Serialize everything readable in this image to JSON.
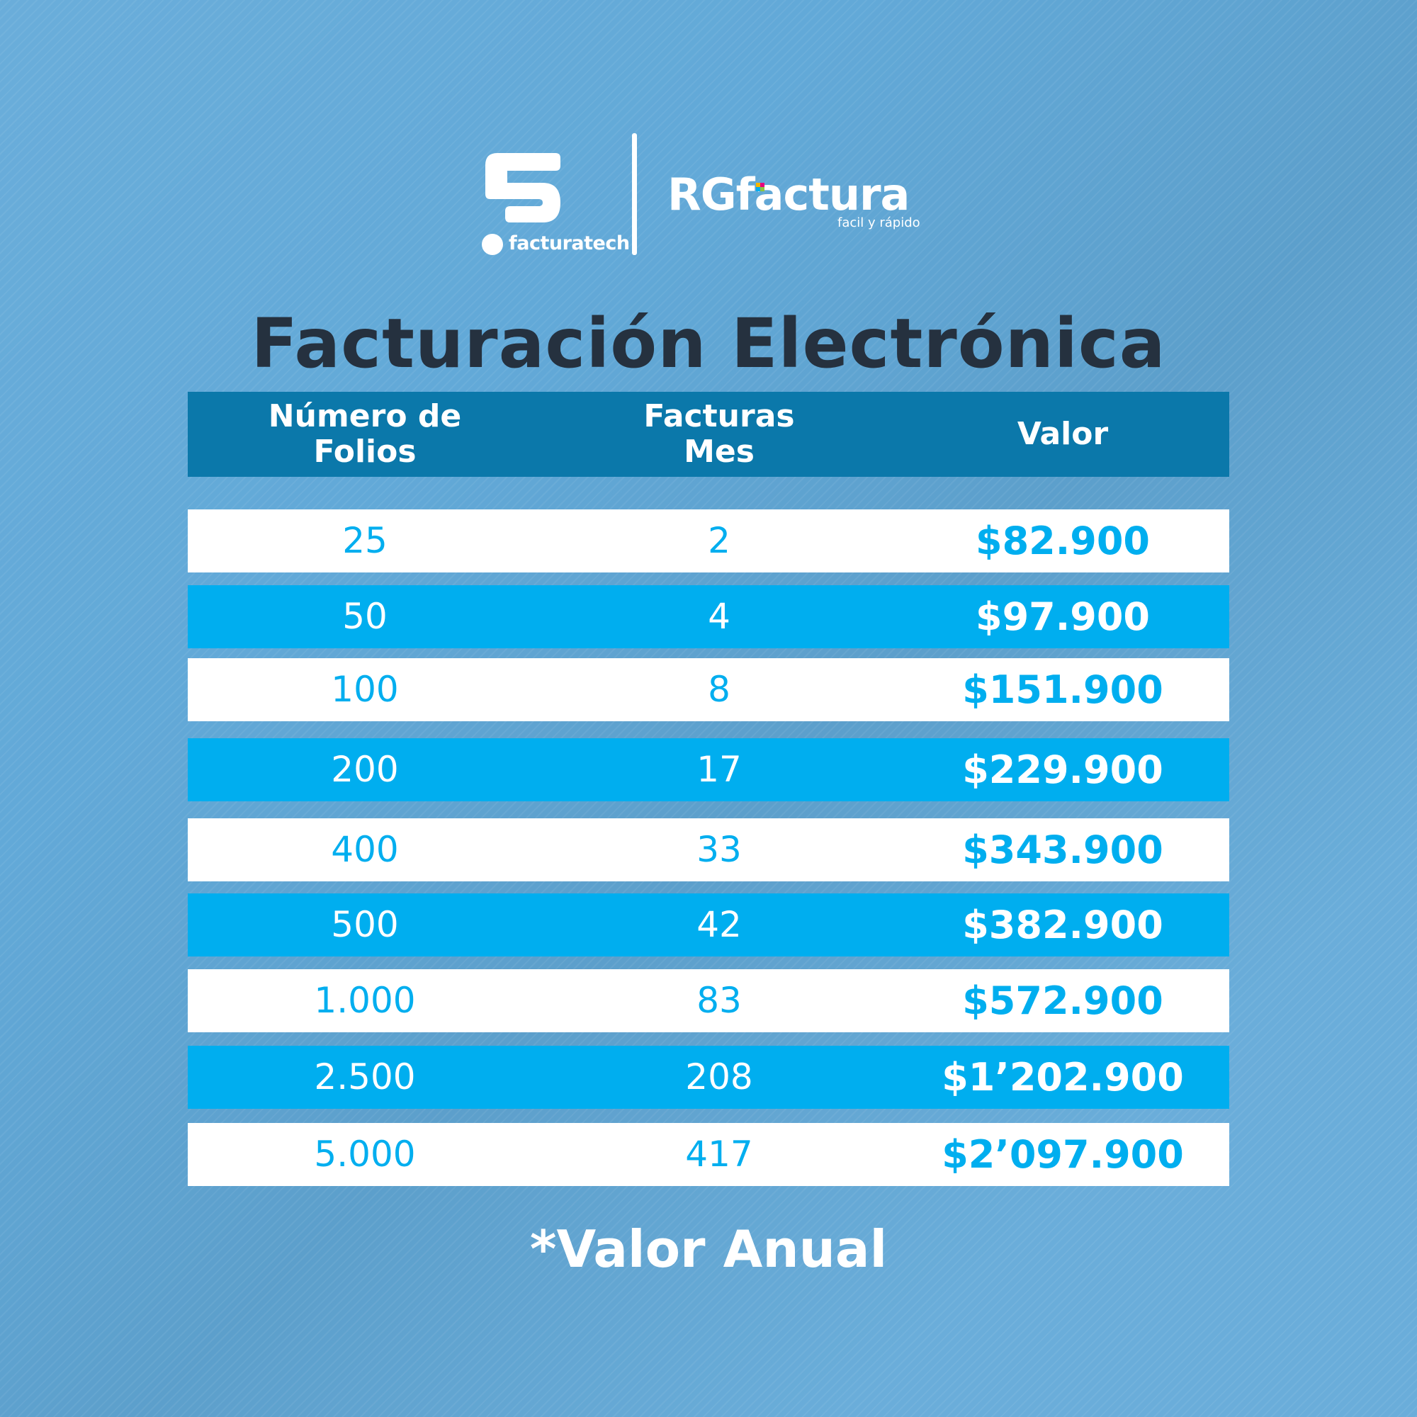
{
  "brand": {
    "left_logo": {
      "name": "facturatech",
      "icon": "facturatech-f-icon"
    },
    "right_logo": {
      "name": "RGfactura",
      "tagline": "facil y rápido",
      "accent_colors": [
        "#f7b500",
        "#e6007e",
        "#00aeef",
        "#8dc63f"
      ]
    }
  },
  "title": "Facturación Electrónica",
  "table": {
    "columns": [
      "Número de\nFolios",
      "Facturas\nMes",
      "Valor"
    ],
    "rows": [
      {
        "folios": "25",
        "mes": "2",
        "valor": "$82.900"
      },
      {
        "folios": "50",
        "mes": "4",
        "valor": "$97.900"
      },
      {
        "folios": "100",
        "mes": "8",
        "valor": "$151.900"
      },
      {
        "folios": "200",
        "mes": "17",
        "valor": "$229.900"
      },
      {
        "folios": "400",
        "mes": "33",
        "valor": "$343.900"
      },
      {
        "folios": "500",
        "mes": "42",
        "valor": "$382.900"
      },
      {
        "folios": "1.000",
        "mes": "83",
        "valor": "$572.900"
      },
      {
        "folios": "2.500",
        "mes": "208",
        "valor": "$1’202.900"
      },
      {
        "folios": "5.000",
        "mes": "417",
        "valor": "$2’097.900"
      }
    ]
  },
  "footnote": "*Valor Anual",
  "colors": {
    "background": "#62a9d8",
    "header": "#0b78aa",
    "row_blue": "#00aeef",
    "row_white": "#ffffff",
    "title": "#25313f"
  }
}
